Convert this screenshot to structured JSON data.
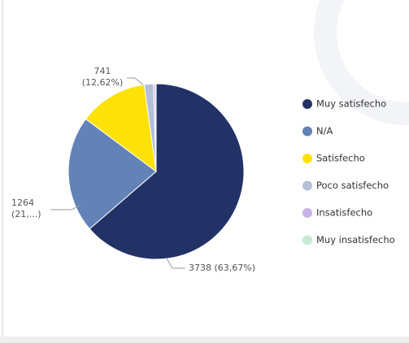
{
  "chart_data": {
    "type": "pie",
    "categories": [
      "Muy satisfecho",
      "N/A",
      "Satisfecho",
      "Poco satisfecho",
      "Insatisfecho",
      "Muy insatisfecho"
    ],
    "values": [
      3738,
      1264,
      741,
      100,
      22,
      6
    ],
    "value_labels": [
      "3738 (63,67%)",
      "1264 (21,...)",
      "741 (12,62%)",
      null,
      null,
      null
    ],
    "colors": [
      "#233266",
      "#6282b8",
      "#fde20a",
      "#b4bfd9",
      "#c9b3e6",
      "#c5ead6"
    ],
    "legend": "right"
  }
}
